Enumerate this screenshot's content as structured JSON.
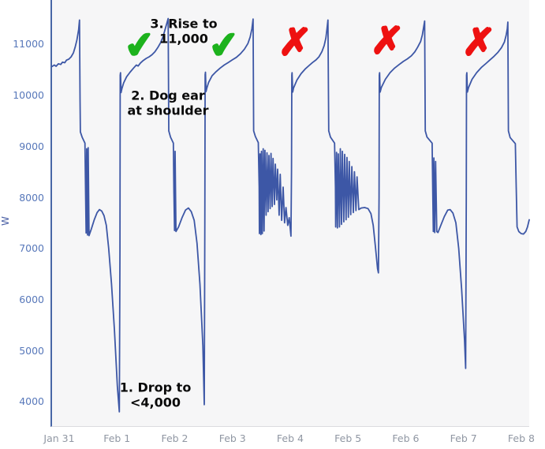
{
  "chart_data": {
    "type": "line",
    "title": "",
    "xlabel": "",
    "ylabel": "W",
    "grid": false,
    "legend": "none",
    "plot_bg": "#f6f6f7",
    "line_color": "#3d57a6",
    "axis_color": "#4866a6",
    "y_tick_color": "#5878ba",
    "x_tick_color": "#9097a3",
    "x_tick_labels": [
      "Jan 31",
      "Feb 1",
      "Feb 2",
      "Feb 3",
      "Feb 4",
      "Feb 5",
      "Feb 6",
      "Feb 7",
      "Feb 8"
    ],
    "x_tick_days": [
      0,
      1,
      2,
      3,
      4,
      5,
      6,
      7,
      8
    ],
    "y_ticks": [
      4000,
      5000,
      6000,
      7000,
      8000,
      9000,
      10000,
      11000
    ],
    "x_range_days": [
      -0.15,
      8.11
    ],
    "y_range_w": [
      3520,
      11863
    ],
    "series": [
      {
        "name": "power_w",
        "points": [
          [
            -0.15,
            10560
          ],
          [
            -0.11,
            10590
          ],
          [
            -0.08,
            10565
          ],
          [
            -0.04,
            10615
          ],
          [
            0.0,
            10600
          ],
          [
            0.03,
            10645
          ],
          [
            0.07,
            10635
          ],
          [
            0.1,
            10685
          ],
          [
            0.14,
            10705
          ],
          [
            0.18,
            10750
          ],
          [
            0.22,
            10830
          ],
          [
            0.25,
            10940
          ],
          [
            0.28,
            11080
          ],
          [
            0.31,
            11280
          ],
          [
            0.325,
            11470
          ],
          [
            0.335,
            9900
          ],
          [
            0.34,
            9280
          ],
          [
            0.37,
            9180
          ],
          [
            0.42,
            9060
          ],
          [
            0.43,
            8100
          ],
          [
            0.44,
            7300
          ],
          [
            0.45,
            8950
          ],
          [
            0.465,
            7260
          ],
          [
            0.475,
            8970
          ],
          [
            0.49,
            7250
          ],
          [
            0.53,
            7380
          ],
          [
            0.58,
            7560
          ],
          [
            0.63,
            7700
          ],
          [
            0.67,
            7760
          ],
          [
            0.71,
            7730
          ],
          [
            0.75,
            7640
          ],
          [
            0.79,
            7450
          ],
          [
            0.83,
            7000
          ],
          [
            0.88,
            6300
          ],
          [
            0.93,
            5400
          ],
          [
            0.98,
            4300
          ],
          [
            1.015,
            3800
          ],
          [
            1.025,
            7000
          ],
          [
            1.03,
            10390
          ],
          [
            1.035,
            10440
          ],
          [
            1.045,
            10050
          ],
          [
            1.06,
            10130
          ],
          [
            1.09,
            10240
          ],
          [
            1.14,
            10360
          ],
          [
            1.2,
            10450
          ],
          [
            1.26,
            10530
          ],
          [
            1.31,
            10590
          ],
          [
            1.34,
            10570
          ],
          [
            1.38,
            10630
          ],
          [
            1.43,
            10680
          ],
          [
            1.48,
            10720
          ],
          [
            1.53,
            10750
          ],
          [
            1.58,
            10790
          ],
          [
            1.63,
            10850
          ],
          [
            1.68,
            10930
          ],
          [
            1.73,
            11030
          ],
          [
            1.77,
            11140
          ],
          [
            1.81,
            11300
          ],
          [
            1.86,
            11500
          ],
          [
            1.87,
            9300
          ],
          [
            1.9,
            9180
          ],
          [
            1.95,
            9060
          ],
          [
            1.96,
            8100
          ],
          [
            1.97,
            7350
          ],
          [
            1.98,
            8900
          ],
          [
            1.995,
            7330
          ],
          [
            2.04,
            7420
          ],
          [
            2.1,
            7600
          ],
          [
            2.16,
            7750
          ],
          [
            2.21,
            7790
          ],
          [
            2.26,
            7720
          ],
          [
            2.31,
            7550
          ],
          [
            2.36,
            7100
          ],
          [
            2.41,
            6300
          ],
          [
            2.46,
            5100
          ],
          [
            2.485,
            3940
          ],
          [
            2.495,
            7500
          ],
          [
            2.5,
            10400
          ],
          [
            2.505,
            10450
          ],
          [
            2.515,
            10070
          ],
          [
            2.53,
            10140
          ],
          [
            2.56,
            10250
          ],
          [
            2.62,
            10380
          ],
          [
            2.69,
            10460
          ],
          [
            2.76,
            10530
          ],
          [
            2.83,
            10590
          ],
          [
            2.9,
            10640
          ],
          [
            2.97,
            10690
          ],
          [
            3.04,
            10740
          ],
          [
            3.11,
            10810
          ],
          [
            3.18,
            10900
          ],
          [
            3.24,
            11010
          ],
          [
            3.28,
            11140
          ],
          [
            3.31,
            11300
          ],
          [
            3.33,
            11490
          ],
          [
            3.34,
            9300
          ],
          [
            3.37,
            9190
          ],
          [
            3.42,
            9070
          ],
          [
            3.435,
            8200
          ],
          [
            3.44,
            7290
          ],
          [
            3.45,
            8850
          ],
          [
            3.465,
            7270
          ],
          [
            3.475,
            8900
          ],
          [
            3.49,
            7290
          ],
          [
            3.505,
            8950
          ],
          [
            3.52,
            7340
          ],
          [
            3.535,
            8920
          ],
          [
            3.555,
            7650
          ],
          [
            3.57,
            8870
          ],
          [
            3.59,
            7720
          ],
          [
            3.605,
            8820
          ],
          [
            3.625,
            7780
          ],
          [
            3.64,
            8860
          ],
          [
            3.66,
            7820
          ],
          [
            3.675,
            8760
          ],
          [
            3.7,
            7860
          ],
          [
            3.715,
            8650
          ],
          [
            3.74,
            7950
          ],
          [
            3.755,
            8550
          ],
          [
            3.78,
            7650
          ],
          [
            3.8,
            8450
          ],
          [
            3.825,
            7550
          ],
          [
            3.85,
            8200
          ],
          [
            3.875,
            7500
          ],
          [
            3.9,
            7800
          ],
          [
            3.93,
            7450
          ],
          [
            3.955,
            7600
          ],
          [
            3.985,
            7240
          ],
          [
            3.995,
            8500
          ],
          [
            4.0,
            10390
          ],
          [
            4.005,
            10440
          ],
          [
            4.015,
            10060
          ],
          [
            4.03,
            10140
          ],
          [
            4.09,
            10300
          ],
          [
            4.16,
            10420
          ],
          [
            4.23,
            10510
          ],
          [
            4.3,
            10580
          ],
          [
            4.36,
            10640
          ],
          [
            4.42,
            10690
          ],
          [
            4.47,
            10750
          ],
          [
            4.52,
            10850
          ],
          [
            4.56,
            10970
          ],
          [
            4.59,
            11120
          ],
          [
            4.61,
            11300
          ],
          [
            4.626,
            11470
          ],
          [
            4.64,
            9300
          ],
          [
            4.67,
            9180
          ],
          [
            4.74,
            9060
          ],
          [
            4.755,
            8200
          ],
          [
            4.76,
            7420
          ],
          [
            4.775,
            8880
          ],
          [
            4.79,
            7400
          ],
          [
            4.805,
            8850
          ],
          [
            4.825,
            7420
          ],
          [
            4.84,
            8950
          ],
          [
            4.86,
            7470
          ],
          [
            4.875,
            8900
          ],
          [
            4.9,
            7520
          ],
          [
            4.915,
            8840
          ],
          [
            4.94,
            7560
          ],
          [
            4.955,
            8780
          ],
          [
            4.98,
            7610
          ],
          [
            4.995,
            8700
          ],
          [
            5.02,
            7660
          ],
          [
            5.04,
            8600
          ],
          [
            5.065,
            7700
          ],
          [
            5.085,
            8500
          ],
          [
            5.11,
            7740
          ],
          [
            5.13,
            8400
          ],
          [
            5.16,
            7760
          ],
          [
            5.2,
            7790
          ],
          [
            5.26,
            7800
          ],
          [
            5.32,
            7780
          ],
          [
            5.37,
            7680
          ],
          [
            5.41,
            7450
          ],
          [
            5.45,
            7000
          ],
          [
            5.485,
            6600
          ],
          [
            5.5,
            6520
          ],
          [
            5.51,
            8000
          ],
          [
            5.515,
            10390
          ],
          [
            5.52,
            10440
          ],
          [
            5.53,
            10060
          ],
          [
            5.55,
            10150
          ],
          [
            5.62,
            10310
          ],
          [
            5.7,
            10440
          ],
          [
            5.78,
            10530
          ],
          [
            5.86,
            10600
          ],
          [
            5.93,
            10660
          ],
          [
            6.0,
            10710
          ],
          [
            6.07,
            10770
          ],
          [
            6.13,
            10850
          ],
          [
            6.18,
            10940
          ],
          [
            6.23,
            11050
          ],
          [
            6.26,
            11180
          ],
          [
            6.28,
            11320
          ],
          [
            6.3,
            11450
          ],
          [
            6.31,
            9300
          ],
          [
            6.34,
            9180
          ],
          [
            6.43,
            9060
          ],
          [
            6.44,
            8100
          ],
          [
            6.45,
            7330
          ],
          [
            6.46,
            8770
          ],
          [
            6.475,
            7310
          ],
          [
            6.49,
            8700
          ],
          [
            6.51,
            7330
          ],
          [
            6.53,
            7310
          ],
          [
            6.58,
            7450
          ],
          [
            6.64,
            7620
          ],
          [
            6.7,
            7750
          ],
          [
            6.74,
            7760
          ],
          [
            6.79,
            7690
          ],
          [
            6.84,
            7500
          ],
          [
            6.89,
            7000
          ],
          [
            6.94,
            6200
          ],
          [
            6.99,
            5200
          ],
          [
            7.01,
            4650
          ],
          [
            7.02,
            8000
          ],
          [
            7.025,
            10390
          ],
          [
            7.03,
            10440
          ],
          [
            7.04,
            10060
          ],
          [
            7.06,
            10150
          ],
          [
            7.12,
            10310
          ],
          [
            7.2,
            10440
          ],
          [
            7.28,
            10540
          ],
          [
            7.36,
            10620
          ],
          [
            7.43,
            10690
          ],
          [
            7.5,
            10760
          ],
          [
            7.57,
            10840
          ],
          [
            7.63,
            10930
          ],
          [
            7.68,
            11040
          ],
          [
            7.71,
            11170
          ],
          [
            7.73,
            11300
          ],
          [
            7.74,
            11430
          ],
          [
            7.75,
            9300
          ],
          [
            7.78,
            9170
          ],
          [
            7.87,
            9050
          ],
          [
            7.885,
            8200
          ],
          [
            7.9,
            7420
          ],
          [
            7.93,
            7330
          ],
          [
            7.97,
            7290
          ],
          [
            8.01,
            7280
          ],
          [
            8.05,
            7330
          ],
          [
            8.08,
            7420
          ],
          [
            8.11,
            7560
          ]
        ]
      }
    ],
    "annotations": {
      "texts": [
        {
          "id": "note-rise",
          "text": "3. Rise to\n11,000",
          "cx": 233,
          "cy": 40
        },
        {
          "id": "note-dogear",
          "text": "2. Dog ear\nat shoulder",
          "cx": 213,
          "cy": 131
        },
        {
          "id": "note-drop",
          "text": "1. Drop to\n<4,000",
          "cx": 197,
          "cy": 501
        }
      ],
      "checkmarks": {
        "symbol": "✔",
        "color": "#1db21d",
        "positions": [
          {
            "cx": 177,
            "cy": 57
          },
          {
            "cx": 284,
            "cy": 57
          }
        ]
      },
      "crosses": {
        "symbol": "✗",
        "color": "#ee1111",
        "positions": [
          {
            "cx": 374,
            "cy": 54
          },
          {
            "cx": 491,
            "cy": 52
          },
          {
            "cx": 607,
            "cy": 54
          }
        ]
      }
    }
  }
}
